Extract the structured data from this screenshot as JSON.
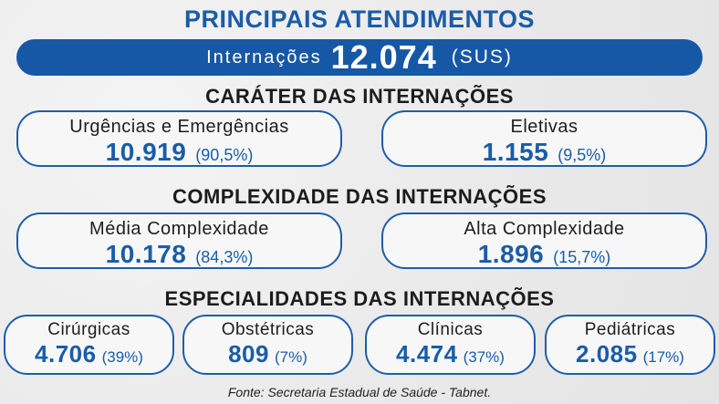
{
  "title": "PRINCIPAIS ATENDIMENTOS",
  "banner": {
    "label": "Internações",
    "value": "12.074",
    "suffix": "(SUS)"
  },
  "sections": {
    "carater": {
      "heading": "CARÁTER DAS INTERNAÇÕES",
      "cards": [
        {
          "name": "Urgências e Emergências",
          "value": "10.919",
          "pct": "(90,5%)"
        },
        {
          "name": "Eletivas",
          "value": "1.155",
          "pct": "(9,5%)"
        }
      ]
    },
    "complexidade": {
      "heading": "COMPLEXIDADE DAS INTERNAÇÕES",
      "cards": [
        {
          "name": "Média Complexidade",
          "value": "10.178",
          "pct": "(84,3%)"
        },
        {
          "name": "Alta Complexidade",
          "value": "1.896",
          "pct": "(15,7%)"
        }
      ]
    },
    "especialidades": {
      "heading": "ESPECIALIDADES DAS INTERNAÇÕES",
      "cards": [
        {
          "name": "Cirúrgicas",
          "value": "4.706",
          "pct": "(39%)"
        },
        {
          "name": "Obstétricas",
          "value": "809",
          "pct": "(7%)"
        },
        {
          "name": "Clínicas",
          "value": "4.474",
          "pct": "(37%)"
        },
        {
          "name": "Pediátricas",
          "value": "2.085",
          "pct": "(17%)"
        }
      ]
    }
  },
  "source": "Fonte: Secretaria Estadual de Saúde - Tabnet.",
  "colors": {
    "brand_blue": "#1658a6",
    "text_dark": "#1c1c1c"
  }
}
